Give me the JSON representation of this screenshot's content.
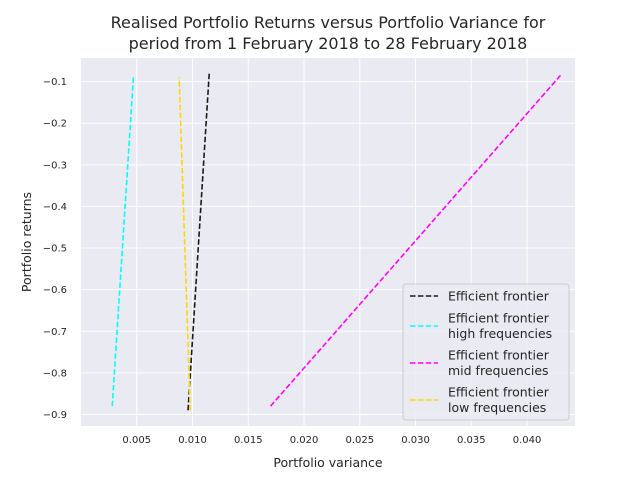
{
  "chart_data": {
    "type": "line",
    "title_line1": "Realised Portfolio Returns versus Portfolio Variance for",
    "title_line2": "period from 1 February 2018 to 28 February 2018",
    "xlabel": "Portfolio variance",
    "ylabel": "Portfolio returns",
    "xlim": [
      0.0,
      0.0443
    ],
    "ylim": [
      -0.9277,
      -0.0433
    ],
    "xticks": [
      0.005,
      0.01,
      0.015,
      0.02,
      0.025,
      0.03,
      0.035,
      0.04
    ],
    "xtick_labels": [
      "0.005",
      "0.010",
      "0.015",
      "0.020",
      "0.025",
      "0.030",
      "0.035",
      "0.040"
    ],
    "yticks": [
      -0.1,
      -0.2,
      -0.3,
      -0.4,
      -0.5,
      -0.6,
      -0.7,
      -0.8,
      -0.9
    ],
    "ytick_labels": [
      "−0.1",
      "−0.2",
      "−0.3",
      "−0.4",
      "−0.5",
      "−0.6",
      "−0.7",
      "−0.8",
      "−0.9"
    ],
    "grid": true,
    "legend_position": "lower-right",
    "background": "#EAEAF2",
    "series": [
      {
        "name": "Efficient frontier",
        "color": "#1a1a1a",
        "x": [
          0.0096,
          0.0115
        ],
        "y": [
          -0.89,
          -0.08
        ]
      },
      {
        "name": "Efficient frontier\nhigh frequencies",
        "color": "#00FFFF",
        "x": [
          0.0028,
          0.0047
        ],
        "y": [
          -0.88,
          -0.09
        ]
      },
      {
        "name": "Efficient frontier\nmid frequencies",
        "color": "#FF00FF",
        "x": [
          0.017,
          0.043
        ],
        "y": [
          -0.88,
          -0.085
        ]
      },
      {
        "name": "Efficient frontier\nlow frequencies",
        "color": "#FFD700",
        "x": [
          0.0098,
          0.0088
        ],
        "y": [
          -0.89,
          -0.09
        ]
      }
    ]
  }
}
